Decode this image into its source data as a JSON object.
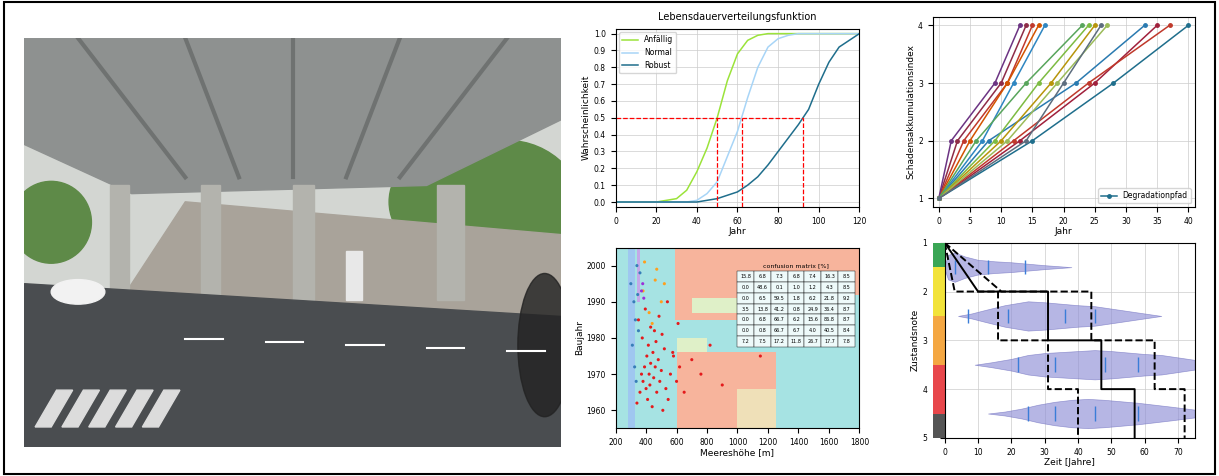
{
  "chart_data": [
    {
      "type": "line",
      "title": "Lebensdauerverteilungsfunktion",
      "x_label": "Jahr",
      "y_label": "Wahrscheinlichkeit",
      "x": [
        0,
        20,
        30,
        35,
        40,
        45,
        50,
        55,
        60,
        65,
        70,
        75,
        80,
        85,
        90,
        95,
        100,
        105,
        110,
        120
      ],
      "series": [
        {
          "name": "Anfällig",
          "color": "#9be33a",
          "values": [
            0,
            0,
            0.02,
            0.07,
            0.18,
            0.32,
            0.5,
            0.72,
            0.88,
            0.96,
            0.99,
            1,
            1,
            1,
            1,
            1,
            1,
            1,
            1,
            1
          ]
        },
        {
          "name": "Normal",
          "color": "#a8d5f7",
          "values": [
            0,
            0,
            0,
            0,
            0.01,
            0.05,
            0.12,
            0.27,
            0.42,
            0.62,
            0.8,
            0.92,
            0.97,
            0.99,
            1,
            1,
            1,
            1,
            1,
            1
          ]
        },
        {
          "name": "Robust",
          "color": "#1f6e8c",
          "values": [
            0,
            0,
            0,
            0,
            0,
            0.01,
            0.02,
            0.04,
            0.06,
            0.1,
            0.15,
            0.22,
            0.3,
            0.38,
            0.46,
            0.55,
            0.7,
            0.83,
            0.92,
            1.0
          ]
        }
      ],
      "median_lines": {
        "y": 0.5,
        "x": [
          50,
          62,
          92
        ],
        "color": "red"
      },
      "xlim": [
        0,
        120
      ],
      "xticks": [
        0,
        20,
        40,
        60,
        80,
        100,
        120
      ],
      "ylim": [
        -0.03,
        1.03
      ],
      "yticks": [
        0.0,
        0.1,
        0.2,
        0.3,
        0.4,
        0.5,
        0.6,
        0.7,
        0.8,
        0.9,
        1.0
      ],
      "grid": true,
      "legend": "upper left"
    },
    {
      "type": "line",
      "x_label": "Jahr",
      "y_label": "Schadensakkumulationsindex",
      "marker": "o",
      "series": [
        {
          "name": "Degradationpfad",
          "color": "#1f6e8c",
          "x": [
            0,
            15,
            28,
            40
          ],
          "values": [
            1,
            2,
            3,
            4
          ]
        },
        {
          "color": "#a0203c",
          "x": [
            0,
            13,
            25,
            35
          ],
          "values": [
            1,
            2,
            3,
            4
          ]
        },
        {
          "color": "#c0392b",
          "x": [
            0,
            12,
            24,
            37
          ],
          "values": [
            1,
            2,
            3,
            4
          ]
        },
        {
          "color": "#2a7ab0",
          "x": [
            0,
            8,
            22,
            33
          ],
          "values": [
            1,
            2,
            3,
            4
          ]
        },
        {
          "color": "#8e2c48",
          "x": [
            0,
            3,
            10,
            14
          ],
          "values": [
            1,
            2,
            3,
            4
          ]
        },
        {
          "color": "#c0392b",
          "x": [
            0,
            4,
            11,
            15
          ],
          "values": [
            1,
            2,
            3,
            4
          ]
        },
        {
          "color": "#d35400",
          "x": [
            0,
            5,
            11,
            16
          ],
          "values": [
            1,
            2,
            3,
            4
          ]
        },
        {
          "color": "#6c3483",
          "x": [
            0,
            2,
            9,
            13
          ],
          "values": [
            1,
            2,
            3,
            4
          ]
        },
        {
          "color": "#2e86c1",
          "x": [
            0,
            7,
            12,
            17
          ],
          "values": [
            1,
            2,
            3,
            4
          ]
        },
        {
          "color": "#7dbb42",
          "x": [
            0,
            9,
            16,
            24
          ],
          "values": [
            1,
            2,
            3,
            4
          ]
        },
        {
          "color": "#b7950b",
          "x": [
            0,
            10,
            18,
            25
          ],
          "values": [
            1,
            2,
            3,
            4
          ]
        },
        {
          "color": "#9bbb59",
          "x": [
            0,
            11,
            19,
            27
          ],
          "values": [
            1,
            2,
            3,
            4
          ]
        },
        {
          "color": "#58a55c",
          "x": [
            0,
            6,
            14,
            23
          ],
          "values": [
            1,
            2,
            3,
            4
          ]
        },
        {
          "color": "#5d6d7e",
          "x": [
            0,
            14,
            20,
            26
          ],
          "values": [
            1,
            2,
            3,
            4
          ]
        }
      ],
      "xlim": [
        -1,
        41
      ],
      "xticks": [
        0,
        5,
        10,
        15,
        20,
        25,
        30,
        35,
        40
      ],
      "ylim": [
        0.85,
        4.15
      ],
      "yticks": [
        1,
        2,
        3,
        4
      ],
      "grid": true,
      "legend": "lower right"
    },
    {
      "type": "scatter",
      "x_label": "Meereshöhe [m]",
      "y_label": "Baujahr",
      "regions": [
        {
          "x": [
            200,
            1800
          ],
          "y": [
            1955,
            2005
          ],
          "color": "#a6e3e3"
        },
        {
          "x": [
            590,
            1800
          ],
          "y": [
            1992,
            2005
          ],
          "color": "#f7b49c"
        },
        {
          "x": [
            590,
            1000
          ],
          "y": [
            1985,
            1992
          ],
          "color": "#f7b49c"
        },
        {
          "x": [
            700,
            1000
          ],
          "y": [
            1987,
            1991
          ],
          "color": "#dff0c8"
        },
        {
          "x": [
            600,
            1250
          ],
          "y": [
            1955,
            1976
          ],
          "color": "#f7b49c"
        },
        {
          "x": [
            1000,
            1250
          ],
          "y": [
            1955,
            1966
          ],
          "color": "#efe0b8"
        },
        {
          "x": [
            600,
            800
          ],
          "y": [
            1976,
            1980
          ],
          "color": "#dff0c8"
        },
        {
          "x": [
            280,
            330
          ],
          "y": [
            1955,
            2005
          ],
          "color": "#9fc7f0"
        },
        {
          "x": [
            340,
            360
          ],
          "y": [
            1990,
            2005
          ],
          "color": "#c4a8e8"
        }
      ],
      "series": [
        {
          "color": "#e41a1c",
          "x": [
            340,
            360,
            370,
            380,
            390,
            400,
            405,
            410,
            415,
            420,
            425,
            430,
            440,
            445,
            450,
            455,
            460,
            470,
            480,
            490,
            500,
            510,
            520,
            530,
            545,
            560,
            580,
            600,
            620,
            650,
            700,
            760,
            820,
            900,
            1150,
            350,
            375,
            395,
            430,
            465,
            485,
            505,
            540,
            575,
            610
          ],
          "values": [
            1962,
            1965,
            1970,
            1968,
            1972,
            1966,
            1975,
            1963,
            1978,
            1970,
            1967,
            1973,
            1961,
            1976,
            1969,
            1982,
            1972,
            1965,
            1974,
            1968,
            1971,
            1960,
            1977,
            1966,
            1963,
            1970,
            1975,
            1968,
            1972,
            1965,
            1974,
            1970,
            1978,
            1967,
            1975,
            1985,
            1980,
            1988,
            1983,
            1979,
            1986,
            1981,
            1990,
            1976,
            1984
          ]
        },
        {
          "color": "#377eb8",
          "x": [
            300,
            320,
            330,
            340,
            310,
            350,
            360,
            325,
            345,
            335
          ],
          "values": [
            1995,
            1990,
            1985,
            2000,
            1978,
            1982,
            1998,
            1972,
            1992,
            1968
          ]
        },
        {
          "color": "#ff9f1c",
          "x": [
            380,
            420,
            460,
            500,
            390,
            440,
            520,
            470
          ],
          "values": [
            1993,
            1987,
            1996,
            1990,
            2001,
            1984,
            1995,
            1999
          ]
        },
        {
          "color": "#9b30d9",
          "x": [
            370,
            385,
            378
          ],
          "values": [
            1993,
            1991,
            1995
          ]
        }
      ],
      "table": {
        "title": "confusion matrix [%]",
        "cells": [
          [
            15.8,
            6.8,
            7.3,
            6.8,
            7.4,
            16.3,
            8.5
          ],
          [
            0.0,
            48.6,
            0.1,
            1.0,
            1.2,
            4.3,
            8.5
          ],
          [
            0.0,
            6.5,
            59.5,
            1.8,
            6.2,
            21.8,
            9.2
          ],
          [
            3.5,
            13.8,
            41.2,
            0.8,
            24.9,
            36.4,
            8.7
          ],
          [
            0.0,
            6.8,
            66.7,
            6.2,
            15.6,
            86.8,
            8.7
          ],
          [
            0.0,
            0.8,
            66.7,
            6.7,
            4.0,
            40.5,
            8.4
          ],
          [
            7.2,
            7.5,
            17.2,
            11.8,
            26.7,
            17.7,
            7.8
          ]
        ]
      },
      "xlim": [
        200,
        1800
      ],
      "xticks": [
        200,
        400,
        600,
        800,
        1000,
        1200,
        1400,
        1600,
        1800
      ],
      "ylim": [
        1955,
        2005
      ],
      "yticks": [
        1960,
        1970,
        1980,
        1990,
        2000
      ],
      "grid": false
    },
    {
      "type": "violin",
      "x_label": "Zeit [Jahre]",
      "y_label": "Zustandsnote",
      "condition_bands": {
        "edges": [
          1,
          1.5,
          2.5,
          3.5,
          4.5,
          5
        ],
        "colors": [
          "#3aa655",
          "#f2e33a",
          "#f4a742",
          "#e8474b",
          "#555555"
        ]
      },
      "violins": [
        {
          "y": 1.5,
          "color": "#8f8fd6",
          "x": [
            0,
            1,
            3,
            6,
            10,
            15,
            20,
            25,
            30,
            38
          ],
          "half_width": [
            0.05,
            0.25,
            0.3,
            0.22,
            0.15,
            0.12,
            0.1,
            0.07,
            0.04,
            0.0
          ],
          "quantiles": [
            3,
            13,
            24
          ]
        },
        {
          "y": 2.5,
          "color": "#8f8fd6",
          "x": [
            4,
            8,
            12,
            18,
            25,
            30,
            35,
            40,
            45,
            50,
            55,
            60,
            65
          ],
          "half_width": [
            0.0,
            0.05,
            0.12,
            0.22,
            0.3,
            0.28,
            0.25,
            0.22,
            0.2,
            0.15,
            0.1,
            0.05,
            0.0
          ],
          "quantiles": [
            7,
            19,
            36,
            45
          ]
        },
        {
          "y": 3.5,
          "color": "#8f8fd6",
          "x": [
            9,
            14,
            20,
            25,
            30,
            35,
            40,
            45,
            50,
            55,
            60,
            65,
            70,
            75
          ],
          "half_width": [
            0.0,
            0.05,
            0.12,
            0.2,
            0.24,
            0.26,
            0.28,
            0.3,
            0.28,
            0.25,
            0.22,
            0.2,
            0.15,
            0.1
          ],
          "quantiles": [
            22,
            33,
            48,
            58
          ]
        },
        {
          "y": 4.5,
          "color": "#8f8fd6",
          "x": [
            13,
            18,
            23,
            28,
            33,
            38,
            43,
            48,
            53,
            58,
            63,
            68,
            75
          ],
          "half_width": [
            0.0,
            0.04,
            0.1,
            0.18,
            0.24,
            0.28,
            0.3,
            0.28,
            0.25,
            0.22,
            0.18,
            0.14,
            0.08
          ],
          "quantiles": [
            25,
            33,
            45,
            58
          ]
        }
      ],
      "series": [
        {
          "color": "black",
          "line_style": "solid",
          "x": [
            0,
            10,
            31,
            31,
            47,
            47,
            57,
            57
          ],
          "values": [
            1,
            2,
            2,
            3,
            3,
            4,
            4,
            5
          ]
        },
        {
          "color": "black",
          "line_style": "dashed",
          "x": [
            0,
            3,
            16,
            16,
            31,
            31,
            40,
            40
          ],
          "values": [
            1,
            2,
            2,
            3,
            3,
            4,
            4,
            5
          ]
        },
        {
          "color": "black",
          "line_style": "dashed",
          "x": [
            0,
            17,
            44,
            44,
            63,
            63,
            72,
            72
          ],
          "values": [
            1,
            2,
            2,
            3,
            3,
            4,
            4,
            5
          ]
        }
      ],
      "xlim": [
        0,
        75
      ],
      "xticks": [
        0,
        10,
        20,
        30,
        40,
        50,
        60,
        70
      ],
      "ylim": [
        5,
        1
      ],
      "yticks": [
        1,
        2,
        3,
        4,
        5
      ],
      "grid": true
    }
  ]
}
